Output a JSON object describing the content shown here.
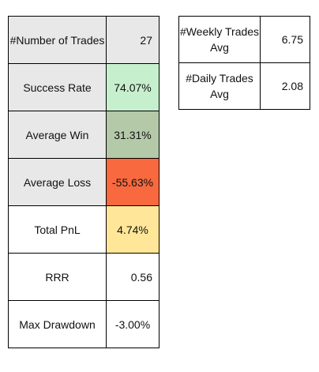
{
  "metrics": {
    "rows": [
      {
        "label": "#Number of Trades",
        "value": "27",
        "label_bg": "#e8e8e8",
        "value_bg": "#e8e8e8",
        "align": "right"
      },
      {
        "label": "Success Rate",
        "value": "74.07%",
        "label_bg": "#e8e8e8",
        "value_bg": "#c6efce",
        "align": "center"
      },
      {
        "label": "Average Win",
        "value": "31.31%",
        "label_bg": "#e8e8e8",
        "value_bg": "#b4c9a8",
        "align": "center"
      },
      {
        "label": "Average Loss",
        "value": "-55.63%",
        "label_bg": "#e8e8e8",
        "value_bg": "#f8693f",
        "align": "center"
      },
      {
        "label": "Total PnL",
        "value": "4.74%",
        "label_bg": "#ffffff",
        "value_bg": "#ffe699",
        "align": "center"
      },
      {
        "label": "RRR",
        "value": "0.56",
        "label_bg": "#ffffff",
        "value_bg": "#ffffff",
        "align": "right"
      },
      {
        "label": "Max Drawdown",
        "value": "-3.00%",
        "label_bg": "#ffffff",
        "value_bg": "#ffffff",
        "align": "center"
      }
    ]
  },
  "averages": {
    "rows": [
      {
        "label_line1": "#Weekly Trades",
        "label_line2": "Avg",
        "value": "6.75"
      },
      {
        "label_line1": "#Daily Trades",
        "label_line2": "Avg",
        "value": "2.08"
      }
    ]
  }
}
